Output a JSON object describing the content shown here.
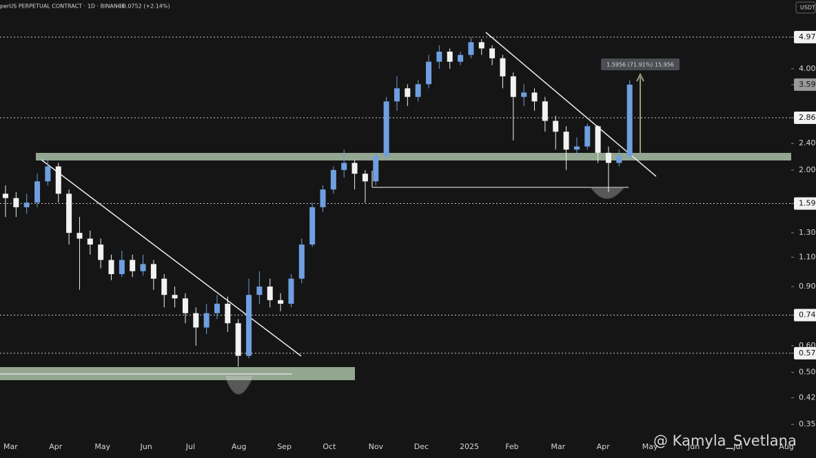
{
  "chart_data": {
    "type": "candlestick",
    "symbol_line": "perUS PERPETUAL CONTRACT · 1D · BINANCE",
    "change": "+0.0752 (+2.14%)",
    "currency": "USDT",
    "measure_label": "1.5956 (71.91%) 15,956",
    "watermark": "@ Kamyla_Svetlana",
    "log_scale": true,
    "up_color": "#6f9fe0",
    "down_color": "#f2f2f2",
    "ylim": [
      0.328,
      6.41
    ],
    "yticks": [
      {
        "value": 4.97,
        "label": "4.97"
      },
      {
        "value": 4.0,
        "label": "4.00"
      },
      {
        "value": 3.59,
        "label": "3.59"
      },
      {
        "value": 2.86,
        "label": "2.86"
      },
      {
        "value": 2.4,
        "label": "2.40"
      },
      {
        "value": 2.0,
        "label": "2.00"
      },
      {
        "value": 1.59,
        "label": "1.59"
      },
      {
        "value": 1.3,
        "label": "1.30"
      },
      {
        "value": 1.1,
        "label": "1.10"
      },
      {
        "value": 0.9,
        "label": "0.90"
      },
      {
        "value": 0.74,
        "label": "0.74"
      },
      {
        "value": 0.6,
        "label": "0.60"
      },
      {
        "value": 0.57,
        "label": "0.57"
      },
      {
        "value": 0.5,
        "label": "0.50"
      },
      {
        "value": 0.42,
        "label": "0.42"
      },
      {
        "value": 0.35,
        "label": "0.35"
      }
    ],
    "levels": [
      4.97,
      2.86,
      1.59,
      0.74,
      0.57
    ],
    "xtick_labels": [
      "Mar",
      "Apr",
      "May",
      "Jun",
      "Jul",
      "Aug",
      "Sep",
      "Oct",
      "Nov",
      "Dec",
      "2025",
      "Feb",
      "Mar",
      "Apr",
      "May",
      "Jun",
      "Jul",
      "Aug"
    ],
    "open": [
      1.7,
      1.65,
      1.55,
      1.6,
      1.85,
      2.05,
      1.7,
      1.3,
      1.25,
      1.2,
      1.08,
      0.98,
      1.08,
      1.0,
      1.05,
      0.95,
      0.85,
      0.83,
      0.75,
      0.68,
      0.75,
      0.8,
      0.7,
      0.56,
      0.85,
      0.9,
      0.82,
      0.8,
      0.95,
      1.2,
      1.55,
      1.75,
      2.0,
      2.1,
      1.95,
      1.85,
      2.2,
      3.2,
      3.5,
      3.3,
      3.6,
      4.2,
      4.5,
      4.2,
      4.4,
      4.8,
      4.6,
      4.3,
      3.8,
      3.3,
      3.4,
      3.2,
      2.8,
      2.6,
      2.3,
      2.35,
      2.7,
      2.25,
      2.1,
      2.2
    ],
    "high": [
      1.8,
      1.72,
      1.7,
      1.95,
      2.2,
      2.1,
      1.75,
      1.45,
      1.32,
      1.25,
      1.12,
      1.15,
      1.12,
      1.12,
      1.08,
      0.98,
      0.9,
      0.86,
      0.78,
      0.8,
      0.85,
      0.84,
      0.72,
      0.95,
      1.0,
      0.95,
      0.86,
      0.98,
      1.25,
      1.6,
      1.8,
      2.05,
      2.3,
      2.15,
      2.0,
      2.25,
      3.3,
      3.8,
      3.6,
      3.7,
      4.4,
      4.7,
      4.6,
      4.5,
      4.97,
      4.9,
      4.7,
      4.4,
      3.9,
      3.6,
      3.5,
      3.3,
      2.9,
      2.7,
      2.5,
      2.75,
      2.72,
      2.35,
      2.3,
      3.7
    ],
    "low": [
      1.45,
      1.45,
      1.48,
      1.55,
      1.8,
      1.6,
      1.2,
      0.88,
      1.12,
      1.02,
      0.94,
      0.96,
      0.96,
      0.97,
      0.88,
      0.78,
      0.78,
      0.7,
      0.6,
      0.65,
      0.72,
      0.66,
      0.52,
      0.55,
      0.8,
      0.78,
      0.76,
      0.78,
      0.92,
      1.18,
      1.5,
      1.7,
      1.9,
      1.75,
      1.6,
      1.8,
      2.15,
      3.0,
      3.1,
      3.2,
      3.5,
      4.0,
      4.0,
      4.1,
      4.3,
      4.4,
      4.1,
      3.5,
      2.45,
      3.1,
      3.0,
      2.6,
      2.3,
      2.0,
      2.2,
      2.3,
      2.1,
      1.72,
      2.05,
      2.15
    ],
    "close": [
      1.65,
      1.55,
      1.6,
      1.85,
      2.05,
      1.7,
      1.3,
      1.25,
      1.2,
      1.08,
      0.98,
      1.08,
      1.0,
      1.05,
      0.95,
      0.85,
      0.83,
      0.75,
      0.68,
      0.75,
      0.8,
      0.7,
      0.56,
      0.85,
      0.9,
      0.82,
      0.8,
      0.95,
      1.2,
      1.55,
      1.75,
      2.0,
      2.1,
      1.95,
      1.85,
      2.2,
      3.2,
      3.5,
      3.3,
      3.6,
      4.2,
      4.5,
      4.2,
      4.4,
      4.8,
      4.6,
      4.3,
      3.8,
      3.3,
      3.4,
      3.2,
      2.8,
      2.6,
      2.3,
      2.35,
      2.7,
      2.25,
      2.1,
      2.2,
      3.59
    ]
  }
}
